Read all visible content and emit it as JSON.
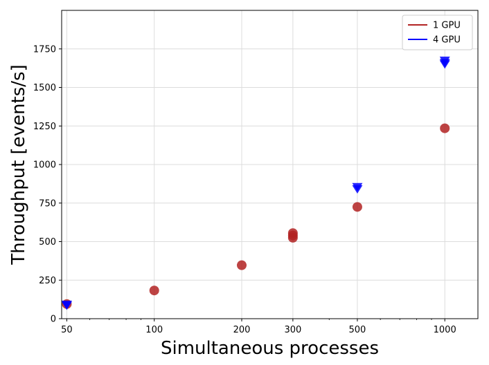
{
  "chart_data": {
    "type": "scatter",
    "xlabel": "Simultaneous processes",
    "ylabel": "Throughput [events/s]",
    "x_scale": "log",
    "xlim": [
      48,
      1300
    ],
    "ylim": [
      0,
      2000
    ],
    "x_ticks": [
      50,
      100,
      200,
      300,
      500,
      1000
    ],
    "y_ticks": [
      0,
      250,
      500,
      750,
      1000,
      1250,
      1500,
      1750
    ],
    "grid": true,
    "legend_position": "top-right",
    "series": [
      {
        "name": "1 GPU",
        "color": "#b22222",
        "marker": "circle",
        "points": [
          {
            "x": 50,
            "y": 95
          },
          {
            "x": 100,
            "y": 183
          },
          {
            "x": 200,
            "y": 347
          },
          {
            "x": 300,
            "y": 540
          },
          {
            "x": 300,
            "y": 555
          },
          {
            "x": 300,
            "y": 525
          },
          {
            "x": 500,
            "y": 725
          },
          {
            "x": 1000,
            "y": 1235
          }
        ]
      },
      {
        "name": "4 GPU",
        "color": "#0000ff",
        "marker": "triangle-down",
        "points": [
          {
            "x": 50,
            "y": 92
          },
          {
            "x": 50,
            "y": 85
          },
          {
            "x": 500,
            "y": 855
          },
          {
            "x": 500,
            "y": 840
          },
          {
            "x": 1000,
            "y": 1675
          },
          {
            "x": 1000,
            "y": 1660
          },
          {
            "x": 1000,
            "y": 1650
          }
        ]
      }
    ]
  }
}
